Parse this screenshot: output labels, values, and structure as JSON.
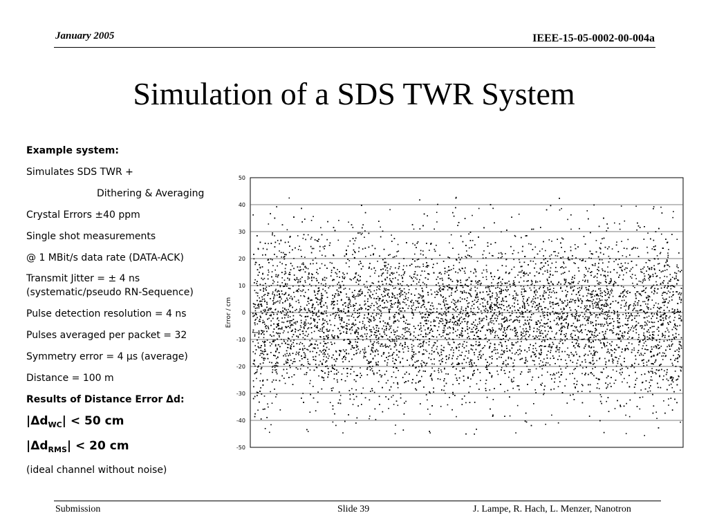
{
  "header": {
    "date": "January 2005",
    "doc_id": "IEEE-15-05-0002-00-004a"
  },
  "slide": {
    "title": "Simulation of a SDS TWR System"
  },
  "content": {
    "example_heading": "Example system:",
    "line1": "Simulates SDS TWR +",
    "line2": "Dithering & Averaging",
    "line3": "Crystal Errors ±40 ppm",
    "line4": "Single shot measurements",
    "line5": "@ 1 MBit/s data rate (DATA-ACK)",
    "line6": "Transmit Jitter = ± 4 ns",
    "line7": "(systematic/pseudo RN-Sequence)",
    "line8": "Pulse detection resolution = 4 ns",
    "line9": "Pulses averaged per packet = 32",
    "line10": "Symmetry error = 4 µs (average)",
    "line11": "Distance = 100 m",
    "results_heading": "Results of Distance Error Δd:",
    "wc_prefix": "|Δd",
    "wc_sub": "WC",
    "wc_suffix": "|  < 50 cm",
    "rms_prefix": "|Δd",
    "rms_sub": "RMS",
    "rms_suffix": "| < 20 cm",
    "note": "(ideal channel without noise)"
  },
  "chart_data": {
    "type": "scatter",
    "title": "",
    "xlabel": "",
    "ylabel": "Error / cm",
    "ylim": [
      -50,
      50
    ],
    "yticks": [
      50,
      40,
      30,
      20,
      10,
      0,
      -10,
      -20,
      -30,
      -40,
      -50
    ],
    "grid": true,
    "legend": "none",
    "point_color": "#000000",
    "approx_point_count": 10000,
    "distribution": "dense random scatter centered near 0, approx. standard deviation 15 cm, nearly all points between -45 and 43 cm"
  },
  "footer": {
    "left": "Submission",
    "center": "Slide 39",
    "right": "J. Lampe, R. Hach, L. Menzer, Nanotron"
  }
}
